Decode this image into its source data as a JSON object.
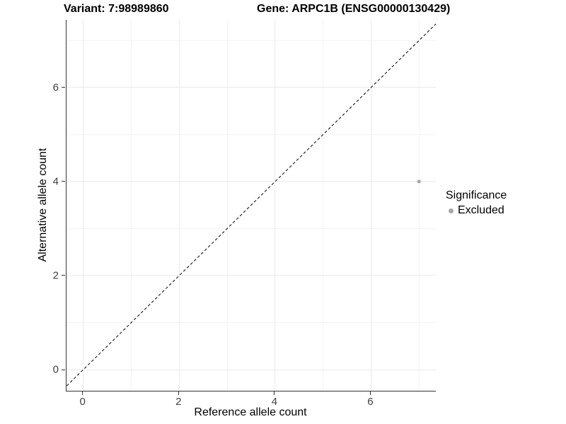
{
  "titles": {
    "variant": "Variant: 7:98989860",
    "gene": "Gene: ARPC1B (ENSG00000130429)"
  },
  "legend": {
    "title": "Significance",
    "items": [
      {
        "label": "Excluded",
        "color": "#a6a6a6"
      }
    ]
  },
  "chart_data": {
    "type": "scatter",
    "title": "Variant: 7:98989860  /  Gene: ARPC1B (ENSG00000130429)",
    "xlabel": "Reference allele count",
    "ylabel": "Alternative allele count",
    "xlim": [
      -0.35,
      7.35
    ],
    "ylim": [
      -0.45,
      7.44
    ],
    "x_major_ticks": [
      0,
      2,
      4,
      6
    ],
    "y_major_ticks": [
      0,
      2,
      4,
      6
    ],
    "x_minor_gridlines": [
      1,
      3,
      5,
      7
    ],
    "y_minor_gridlines": [
      1,
      3,
      5,
      7
    ],
    "grid": {
      "on": true,
      "major_color": "#ebebeb",
      "minor_color": "#f4f4f4"
    },
    "reference_line": {
      "kind": "identity-abline",
      "slope": 1,
      "intercept": 0,
      "style": "dashed",
      "color": "#000000"
    },
    "legend_position": "right",
    "series": [
      {
        "name": "Excluded",
        "color": "#a6a6a6",
        "point_radius": 2.5,
        "points": [
          {
            "x": 7,
            "y": 4
          }
        ]
      }
    ]
  }
}
